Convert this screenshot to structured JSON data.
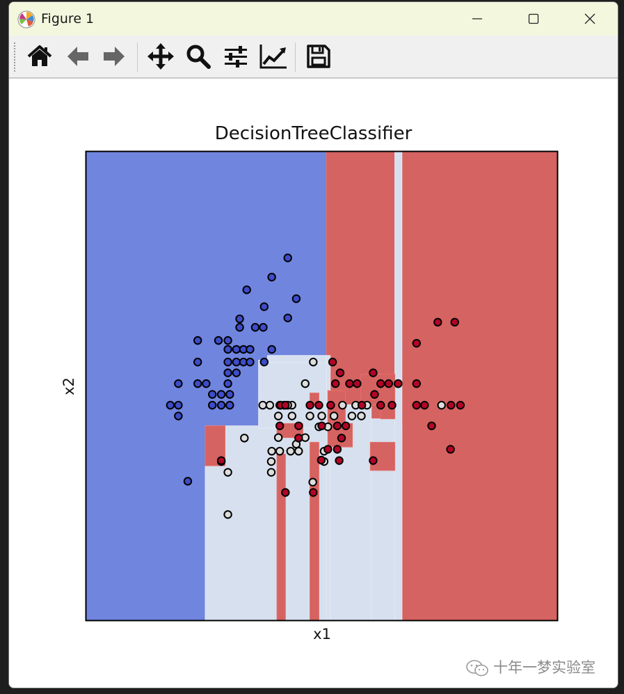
{
  "window": {
    "title": "Figure 1",
    "icons": [
      "matplotlib-icon",
      "minimize-icon",
      "maximize-icon",
      "close-icon"
    ]
  },
  "toolbar": {
    "tools": [
      "home-icon",
      "back-icon",
      "forward-icon",
      "pan-icon",
      "zoom-icon",
      "configure-subplots-icon",
      "edit-axis-icon",
      "save-icon"
    ]
  },
  "watermark": {
    "text": "十年一梦实验室"
  },
  "colors": {
    "class0": "#3d4cc8",
    "class1": "#dddddd",
    "class2": "#b40426",
    "region0": "#7085de",
    "region1": "#d6e0ef",
    "region2": "#d56361"
  },
  "chart_data": {
    "type": "scatter",
    "title": "DecisionTreeClassifier",
    "xlabel": "x1",
    "ylabel": "x2",
    "xlim": [
      0,
      100
    ],
    "ylim": [
      0,
      100
    ],
    "ticks": "none",
    "grid": false,
    "regions": [
      {
        "class": 0,
        "x0": 0,
        "x1": 100,
        "y0": 0,
        "y1": 100
      },
      {
        "class": 2,
        "x0": 51,
        "x1": 100,
        "y0": 0,
        "y1": 100
      },
      {
        "class": 1,
        "x0": 25.3,
        "x1": 67,
        "y0": 0,
        "y1": 41.5
      },
      {
        "class": 1,
        "x0": 36.6,
        "x1": 51,
        "y0": 41,
        "y1": 55.5
      },
      {
        "class": 1,
        "x0": 38.5,
        "x1": 51,
        "y0": 55,
        "y1": 56.5
      },
      {
        "class": 1,
        "x0": 51,
        "x1": 51.8,
        "y0": 0,
        "y1": 56.5
      },
      {
        "class": 1,
        "x0": 51.8,
        "x1": 60.5,
        "y0": 0,
        "y1": 46
      },
      {
        "class": 1,
        "x0": 60.5,
        "x1": 65.5,
        "y0": 0,
        "y1": 43
      },
      {
        "class": 1,
        "x0": 65.5,
        "x1": 67,
        "y0": 0,
        "y1": 100
      },
      {
        "class": 2,
        "x0": 25.3,
        "x1": 29.5,
        "y0": 33,
        "y1": 41.5
      },
      {
        "class": 2,
        "x0": 40.5,
        "x1": 42.3,
        "y0": 0,
        "y1": 35.5
      },
      {
        "class": 2,
        "x0": 40.5,
        "x1": 46,
        "y0": 39,
        "y1": 42
      },
      {
        "class": 2,
        "x0": 47.5,
        "x1": 49.4,
        "y0": 0,
        "y1": 38
      },
      {
        "class": 2,
        "x0": 47.5,
        "x1": 49.4,
        "y0": 46,
        "y1": 48.5
      },
      {
        "class": 2,
        "x0": 51.3,
        "x1": 56.5,
        "y0": 37,
        "y1": 42
      },
      {
        "class": 2,
        "x0": 51.3,
        "x1": 55,
        "y0": 42,
        "y1": 49
      },
      {
        "class": 2,
        "x0": 58.3,
        "x1": 65.5,
        "y0": 46,
        "y1": 52.5
      },
      {
        "class": 2,
        "x0": 62.5,
        "x1": 65.5,
        "y0": 43,
        "y1": 46
      },
      {
        "class": 2,
        "x0": 60.3,
        "x1": 65.5,
        "y0": 32,
        "y1": 38
      }
    ],
    "series": [
      {
        "class": 0,
        "x": [
          42.8,
          34.1,
          39.4,
          44.6,
          37.8,
          32.6,
          42.8,
          32.6,
          35.9,
          37.6,
          23.7,
          28.1,
          30.1,
          39.4,
          23.7,
          30.1,
          31.9,
          33.4,
          34.8,
          30.1,
          31.9,
          33.4,
          34.8,
          37.8,
          30.1,
          31.9,
          19.6,
          23.7,
          25.5,
          30.1,
          26.8,
          28.7,
          30.5,
          26.8,
          28.7,
          30.5,
          17.9,
          19.6,
          19.6,
          21.6
        ],
        "y": [
          77.3,
          70.5,
          73.2,
          68.6,
          66.9,
          64.3,
          64.5,
          62.5,
          62.5,
          62.5,
          59.7,
          59.7,
          59.7,
          57.8,
          55.1,
          55.1,
          57.8,
          57.8,
          57.8,
          57.8,
          55.1,
          55.1,
          55.1,
          55.1,
          52.8,
          52.8,
          50.5,
          50.5,
          50.5,
          50.5,
          48.2,
          48.2,
          48.2,
          45.9,
          45.9,
          45.9,
          45.9,
          45.9,
          43.6,
          29.7
        ]
      },
      {
        "class": 1,
        "x": [
          48.2,
          46.5,
          75.4,
          39,
          42,
          43.7,
          37.5,
          41.1,
          42.8,
          47.5,
          50,
          52.6,
          54.4,
          57.2,
          59.6,
          66.2,
          40.8,
          43.7,
          49.4,
          51.3,
          56.4,
          58.4,
          40.8,
          46.5,
          44.6,
          43.4,
          33.6,
          39.4,
          41.1,
          45.1,
          50.5,
          28.7,
          39.3,
          50.5,
          30.1,
          39.3,
          48.1,
          30.1
        ],
        "y": [
          55.1,
          50.5,
          45.9,
          45.9,
          45.9,
          45.9,
          45.9,
          45.9,
          45.9,
          43.6,
          43.6,
          43.6,
          45.9,
          45.9,
          45.9,
          50.5,
          43.6,
          43.6,
          41.3,
          41.3,
          43.6,
          43.6,
          39,
          39,
          37.6,
          36.1,
          38.9,
          36.1,
          36.1,
          36.1,
          36.1,
          33.9,
          33.9,
          33.9,
          31.6,
          31.6,
          29.5,
          22.6
        ]
      },
      {
        "class": 2,
        "x": [
          74.6,
          78.2,
          70.1,
          52.3,
          53.9,
          60.9,
          52.9,
          55.9,
          57.5,
          62.5,
          64.2,
          66.2,
          70.1,
          61.2,
          58.5,
          62.5,
          64.9,
          70.1,
          71.8,
          77.4,
          79.4,
          47.5,
          49.4,
          51.9,
          41.3,
          42.3,
          45.1,
          50,
          53.3,
          55.1,
          54.2,
          73.3,
          41.1,
          45.1,
          51.3,
          53.3,
          49.9,
          77.3,
          28.7,
          53.7,
          60.9,
          42.3,
          48.2
        ],
        "y": [
          63.6,
          63.6,
          59.1,
          55.1,
          52.8,
          52.8,
          50.5,
          50.5,
          50.5,
          50.5,
          50.5,
          50.5,
          50.5,
          48.2,
          45.9,
          45.9,
          45.9,
          45.9,
          45.9,
          45.9,
          45.9,
          45.9,
          45.9,
          45.9,
          45.9,
          45.9,
          41.5,
          41.5,
          41.5,
          41.5,
          38.9,
          41.5,
          41.5,
          38.9,
          36.5,
          36.5,
          34.2,
          36.5,
          34.1,
          34.1,
          34.1,
          27.3,
          27.3
        ]
      }
    ]
  }
}
